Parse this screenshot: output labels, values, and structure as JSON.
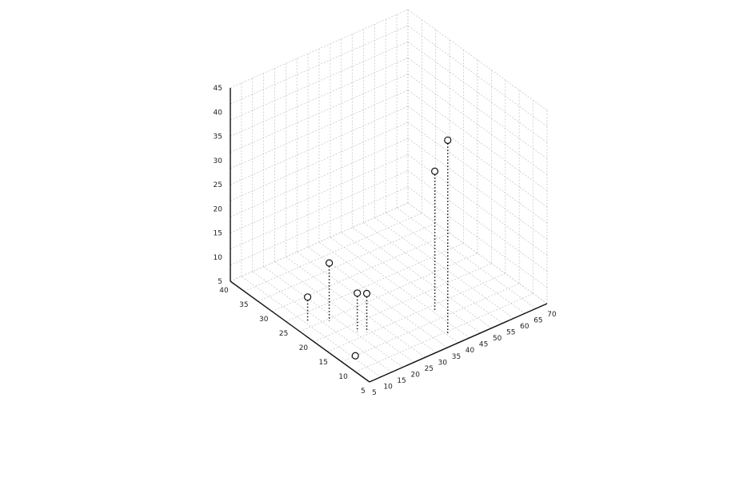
{
  "chart_data": {
    "type": "scatter",
    "title": "",
    "xlabel": "",
    "ylabel": "",
    "zlabel": "",
    "axis_ticks_note": "",
    "x_ticks": [
      5,
      10,
      15,
      20,
      25,
      30,
      35,
      40,
      45,
      50,
      55,
      60,
      65,
      70
    ],
    "y_ticks": [
      5,
      10,
      15,
      20,
      25,
      30,
      35,
      40
    ],
    "z_ticks": [
      5,
      10,
      15,
      20,
      25,
      30,
      35,
      40,
      45
    ],
    "xlim": [
      5,
      70
    ],
    "ylim": [
      5,
      40
    ],
    "zlim": [
      5,
      45
    ],
    "grid": true,
    "points": [
      {
        "x": 38,
        "y": 8,
        "z": 45
      },
      {
        "x": 42,
        "y": 14,
        "z": 34
      },
      {
        "x": 15,
        "y": 22,
        "z": 17
      },
      {
        "x": 18,
        "y": 17,
        "z": 13
      },
      {
        "x": 20,
        "y": 16,
        "z": 13
      },
      {
        "x": 10,
        "y": 24,
        "z": 10
      },
      {
        "x": 10,
        "y": 12,
        "z": 5
      }
    ]
  }
}
